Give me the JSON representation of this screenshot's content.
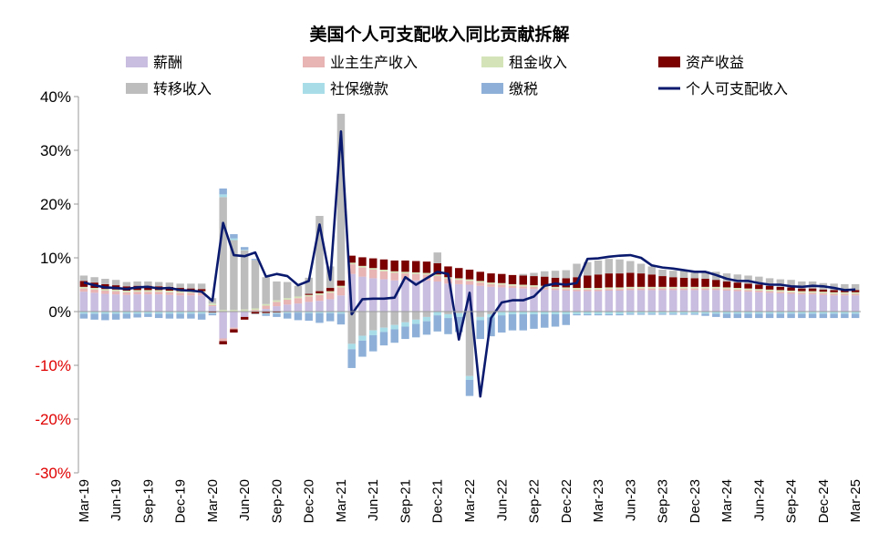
{
  "chart_data": {
    "type": "bar",
    "stacked": true,
    "title": "美国个人可支配收入同比贡献拆解",
    "ylim": [
      -30,
      40
    ],
    "yticks": [
      -30,
      -20,
      -10,
      0,
      10,
      20,
      30,
      40
    ],
    "ytick_labels": [
      "-30%",
      "-20%",
      "-10%",
      "0%",
      "10%",
      "20%",
      "30%",
      "40%"
    ],
    "negative_tick_color": "#e00000",
    "positive_tick_color": "#000000",
    "grid": false,
    "legend_position": "top",
    "xtick_labels": [
      "Mar-19",
      "Jun-19",
      "Sep-19",
      "Dec-19",
      "Mar-20",
      "Jun-20",
      "Sep-20",
      "Dec-20",
      "Mar-21",
      "Jun-21",
      "Sep-21",
      "Dec-21",
      "Mar-22",
      "Jun-22",
      "Sep-22",
      "Dec-22",
      "Mar-23",
      "Jun-23",
      "Sep-23",
      "Dec-23",
      "Mar-24",
      "Jun-24",
      "Sep-24",
      "Dec-24",
      "Mar-25"
    ],
    "categories": [
      "Mar-19",
      "Apr-19",
      "May-19",
      "Jun-19",
      "Jul-19",
      "Aug-19",
      "Sep-19",
      "Oct-19",
      "Nov-19",
      "Dec-19",
      "Jan-20",
      "Feb-20",
      "Mar-20",
      "Apr-20",
      "May-20",
      "Jun-20",
      "Jul-20",
      "Aug-20",
      "Sep-20",
      "Oct-20",
      "Nov-20",
      "Dec-20",
      "Jan-21",
      "Feb-21",
      "Mar-21",
      "Apr-21",
      "May-21",
      "Jun-21",
      "Jul-21",
      "Aug-21",
      "Sep-21",
      "Oct-21",
      "Nov-21",
      "Dec-21",
      "Jan-22",
      "Feb-22",
      "Mar-22",
      "Apr-22",
      "May-22",
      "Jun-22",
      "Jul-22",
      "Aug-22",
      "Sep-22",
      "Oct-22",
      "Nov-22",
      "Dec-22",
      "Jan-23",
      "Feb-23",
      "Mar-23",
      "Apr-23",
      "May-23",
      "Jun-23",
      "Jul-23",
      "Aug-23",
      "Sep-23",
      "Oct-23",
      "Nov-23",
      "Dec-23",
      "Jan-24",
      "Feb-24",
      "Mar-24",
      "Apr-24",
      "May-24",
      "Jun-24",
      "Jul-24",
      "Aug-24",
      "Sep-24",
      "Oct-24",
      "Nov-24",
      "Dec-24",
      "Jan-25",
      "Feb-25",
      "Mar-25"
    ],
    "series": [
      {
        "name": "薪酬",
        "kind": "bar",
        "color": "#c9bde0",
        "values": [
          3.7,
          3.5,
          3.3,
          3.2,
          3.1,
          3.2,
          3.2,
          3.2,
          3.1,
          3.0,
          3.0,
          3.0,
          1.0,
          -5.0,
          -3.0,
          -1.0,
          0.0,
          0.5,
          1.0,
          1.3,
          1.5,
          1.8,
          2.0,
          2.3,
          3.0,
          7.0,
          6.5,
          6.2,
          6.0,
          5.8,
          5.8,
          5.8,
          5.8,
          5.6,
          5.2,
          5.1,
          5.0,
          4.8,
          4.6,
          4.5,
          4.4,
          4.3,
          4.2,
          4.1,
          4.0,
          3.9,
          3.8,
          3.8,
          3.8,
          3.9,
          3.9,
          4.0,
          4.0,
          4.0,
          4.0,
          4.0,
          4.0,
          4.0,
          4.0,
          4.0,
          3.9,
          3.8,
          3.7,
          3.6,
          3.5,
          3.4,
          3.3,
          3.2,
          3.2,
          3.1,
          3.0,
          3.0,
          3.0
        ]
      },
      {
        "name": "业主生产收入",
        "kind": "bar",
        "color": "#e8b4b4",
        "values": [
          0.6,
          0.6,
          0.6,
          0.6,
          0.5,
          0.5,
          0.5,
          0.5,
          0.5,
          0.5,
          0.5,
          0.5,
          0.2,
          -0.5,
          -0.3,
          0.1,
          0.3,
          0.6,
          0.8,
          0.9,
          1.0,
          1.0,
          1.1,
          1.2,
          1.5,
          1.8,
          1.7,
          1.6,
          1.5,
          1.4,
          1.3,
          1.2,
          1.1,
          1.0,
          0.9,
          0.8,
          0.7,
          0.6,
          0.5,
          0.5,
          0.4,
          0.4,
          0.4,
          0.4,
          0.3,
          0.3,
          0.3,
          0.3,
          0.3,
          0.3,
          0.3,
          0.3,
          0.3,
          0.3,
          0.3,
          0.3,
          0.3,
          0.3,
          0.3,
          0.3,
          0.3,
          0.3,
          0.3,
          0.3,
          0.3,
          0.3,
          0.3,
          0.3,
          0.3,
          0.3,
          0.3,
          0.3,
          0.3
        ]
      },
      {
        "name": "租金收入",
        "kind": "bar",
        "color": "#d4e4b8",
        "values": [
          0.3,
          0.3,
          0.3,
          0.3,
          0.3,
          0.3,
          0.3,
          0.3,
          0.3,
          0.3,
          0.3,
          0.3,
          0.3,
          0.3,
          0.3,
          0.3,
          0.3,
          0.3,
          0.3,
          0.3,
          0.3,
          0.3,
          0.3,
          0.3,
          0.3,
          0.3,
          0.3,
          0.3,
          0.3,
          0.3,
          0.3,
          0.3,
          0.3,
          0.3,
          0.3,
          0.3,
          0.3,
          0.3,
          0.3,
          0.3,
          0.3,
          0.3,
          0.3,
          0.3,
          0.3,
          0.3,
          0.3,
          0.3,
          0.3,
          0.3,
          0.3,
          0.3,
          0.3,
          0.3,
          0.3,
          0.3,
          0.3,
          0.3,
          0.3,
          0.3,
          0.3,
          0.3,
          0.3,
          0.3,
          0.3,
          0.3,
          0.3,
          0.3,
          0.3,
          0.3,
          0.3,
          0.3,
          0.3
        ]
      },
      {
        "name": "资产收益",
        "kind": "bar",
        "color": "#7b0000",
        "values": [
          1.1,
          1.0,
          0.9,
          0.8,
          0.8,
          0.8,
          0.8,
          0.7,
          0.7,
          0.6,
          0.5,
          0.4,
          -0.2,
          -0.6,
          -0.6,
          -0.5,
          -0.4,
          -0.3,
          -0.2,
          -0.1,
          0.0,
          0.2,
          0.4,
          0.6,
          1.0,
          1.3,
          1.6,
          1.8,
          1.9,
          2.0,
          2.1,
          2.1,
          2.1,
          2.1,
          2.0,
          1.9,
          1.8,
          1.7,
          1.7,
          1.7,
          1.7,
          1.7,
          1.7,
          1.7,
          1.7,
          1.7,
          2.0,
          2.3,
          2.5,
          2.6,
          2.6,
          2.6,
          2.5,
          2.3,
          2.0,
          1.8,
          1.7,
          1.6,
          1.5,
          1.3,
          1.1,
          1.0,
          0.9,
          0.8,
          0.7,
          0.6,
          0.6,
          0.5,
          0.5,
          0.4,
          0.4,
          0.4,
          0.4
        ]
      },
      {
        "name": "转移收入",
        "kind": "bar",
        "color": "#bdbdbd",
        "values": [
          1.0,
          1.0,
          1.0,
          1.0,
          0.8,
          0.8,
          0.8,
          0.8,
          0.8,
          0.8,
          0.9,
          1.0,
          1.0,
          21.0,
          13.0,
          11.0,
          9.0,
          5.0,
          3.5,
          3.0,
          2.0,
          3.0,
          14.0,
          4.0,
          31.0,
          -6.0,
          -4.5,
          -3.5,
          -3.0,
          -2.5,
          -2.0,
          -1.5,
          -1.0,
          2.0,
          -0.5,
          -0.3,
          -12.0,
          -1.0,
          -0.5,
          -0.1,
          0.0,
          0.3,
          0.6,
          1.0,
          1.3,
          1.5,
          2.5,
          2.5,
          2.6,
          2.7,
          2.6,
          2.2,
          1.8,
          1.5,
          1.2,
          1.2,
          1.3,
          1.3,
          1.4,
          1.5,
          1.5,
          1.5,
          1.5,
          1.5,
          1.4,
          1.4,
          1.4,
          1.3,
          1.3,
          1.2,
          1.2,
          1.1,
          1.1
        ]
      },
      {
        "name": "社保缴款",
        "kind": "bar",
        "color": "#a8dde8",
        "values": [
          -0.4,
          -0.4,
          -0.4,
          -0.4,
          -0.4,
          -0.4,
          -0.4,
          -0.4,
          -0.4,
          -0.4,
          -0.4,
          -0.4,
          -0.2,
          0.5,
          0.3,
          0.1,
          -0.1,
          -0.2,
          -0.2,
          -0.2,
          -0.2,
          -0.3,
          -0.3,
          -0.3,
          -0.4,
          -1.0,
          -0.9,
          -0.9,
          -0.8,
          -0.8,
          -0.8,
          -0.8,
          -0.8,
          -0.7,
          -0.7,
          -0.7,
          -0.7,
          -0.6,
          -0.6,
          -0.6,
          -0.5,
          -0.5,
          -0.5,
          -0.5,
          -0.5,
          -0.5,
          -0.5,
          -0.5,
          -0.5,
          -0.5,
          -0.5,
          -0.4,
          -0.4,
          -0.4,
          -0.4,
          -0.4,
          -0.4,
          -0.4,
          -0.4,
          -0.4,
          -0.4,
          -0.4,
          -0.4,
          -0.4,
          -0.4,
          -0.4,
          -0.4,
          -0.4,
          -0.4,
          -0.4,
          -0.4,
          -0.4,
          -0.4
        ]
      },
      {
        "name": "缴税",
        "kind": "bar",
        "color": "#8eb0d8",
        "values": [
          -0.9,
          -1.1,
          -1.2,
          -1.1,
          -0.9,
          -0.7,
          -0.6,
          -0.8,
          -0.9,
          -0.9,
          -0.9,
          -1.1,
          -0.3,
          1.1,
          0.8,
          0.5,
          0.2,
          -0.3,
          -0.6,
          -1.0,
          -1.4,
          -1.4,
          -1.8,
          -1.5,
          -2.0,
          -3.5,
          -3.0,
          -3.0,
          -2.5,
          -2.5,
          -2.3,
          -2.5,
          -2.5,
          -3.0,
          -3.0,
          -2.8,
          -3.0,
          -3.5,
          -3.5,
          -3.2,
          -3.0,
          -3.0,
          -2.7,
          -2.5,
          -2.3,
          -2.0,
          -0.2,
          -0.2,
          -0.2,
          -0.2,
          -0.2,
          -0.2,
          -0.2,
          -0.2,
          -0.2,
          -0.2,
          -0.2,
          -0.2,
          -0.4,
          -0.6,
          -0.8,
          -0.8,
          -0.8,
          -0.8,
          -0.8,
          -0.8,
          -0.8,
          -0.8,
          -0.8,
          -0.8,
          -0.8,
          -0.8,
          -0.8
        ]
      },
      {
        "name": "个人可支配收入",
        "kind": "line",
        "color": "#0a1a6e",
        "values": [
          5.4,
          4.9,
          4.5,
          4.4,
          4.2,
          4.5,
          4.6,
          4.3,
          4.4,
          4.0,
          3.9,
          3.7,
          2.0,
          16.5,
          10.5,
          10.3,
          11.0,
          6.5,
          7.0,
          6.6,
          4.9,
          5.7,
          16.2,
          5.9,
          33.5,
          -0.5,
          2.3,
          2.4,
          2.4,
          2.6,
          6.4,
          5.0,
          6.2,
          7.4,
          7.0,
          -5.2,
          3.5,
          -15.8,
          -1.2,
          1.7,
          2.1,
          2.1,
          2.8,
          4.8,
          5.2,
          5.0,
          5.3,
          9.8,
          9.9,
          10.2,
          10.4,
          10.5,
          10.0,
          8.6,
          8.2,
          8.0,
          7.7,
          7.4,
          7.4,
          6.8,
          6.1,
          5.7,
          5.7,
          5.3,
          5.0,
          5.0,
          4.7,
          4.6,
          4.8,
          4.7,
          4.4,
          4.0,
          4.1
        ]
      }
    ]
  }
}
